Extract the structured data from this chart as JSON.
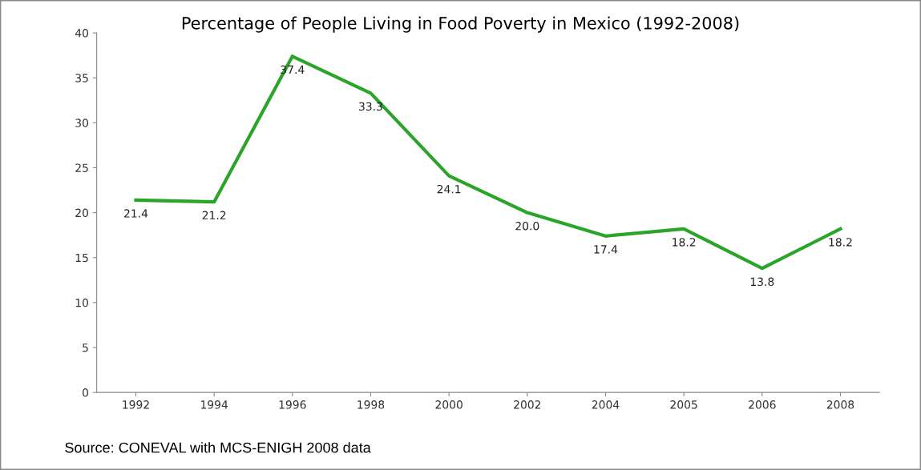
{
  "chart_data": {
    "type": "line",
    "title": "Percentage of People Living in Food Poverty in Mexico (1992-2008)",
    "categories": [
      "1992",
      "1994",
      "1996",
      "1998",
      "2000",
      "2002",
      "2004",
      "2005",
      "2006",
      "2008"
    ],
    "series": [
      {
        "color": "#2aa52a",
        "values": [
          21.4,
          21.2,
          37.4,
          33.3,
          24.1,
          20.0,
          17.4,
          18.2,
          13.8,
          18.2
        ]
      }
    ],
    "value_labels": [
      "21.4",
      "21.2",
      "37.4",
      "33.3",
      "24.1",
      "20.0",
      "17.4",
      "18.2",
      "13.8",
      "18.2"
    ],
    "ylim": [
      0,
      40
    ],
    "yticks": [
      0,
      5,
      10,
      15,
      20,
      25,
      30,
      35,
      40
    ],
    "grid": false,
    "legend": false,
    "marker": "none",
    "line_style": "solid",
    "annotations": [
      "Source: CONEVAL with MCS-ENIGH 2008 data"
    ]
  }
}
